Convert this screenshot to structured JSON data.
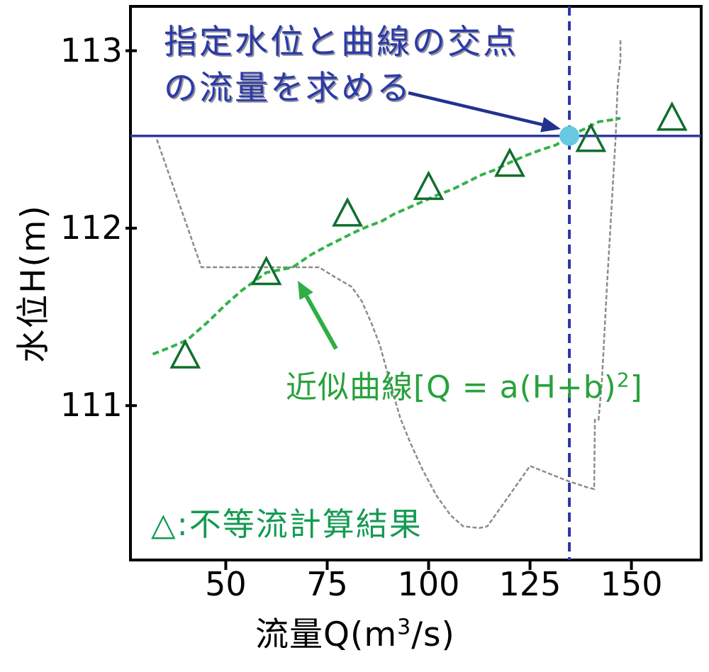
{
  "figure": {
    "y_axis": {
      "title": "水位H(m)",
      "ticks": [
        113,
        112,
        111
      ]
    },
    "x_axis": {
      "title_prefix": "流量Q(m",
      "title_sup": "3",
      "title_suffix": "/s)",
      "ticks": [
        50,
        75,
        100,
        125,
        150
      ]
    },
    "annotation": {
      "line1": "指定水位と曲線の交点",
      "line2": "の流量を求める"
    },
    "curve_label": {
      "prefix": "近似曲線[Q = a(H+b)",
      "sup": "2",
      "suffix": "]"
    },
    "legend": {
      "marker": "△",
      "separator": ":",
      "label": "不等流計算結果"
    }
  },
  "colors": {
    "frame": "#000000",
    "tick_text": "#000000",
    "specified_level_line": "#3138a0",
    "dashed_vertical": "#2b35a8",
    "fit_curve": "#33b24a",
    "triangle": "#116e2e",
    "gray_line": "#8c8c8c",
    "intersection_dot": "#67c9e2",
    "annotation_text": "#2b3aa8",
    "blue_arrow": "#24318f",
    "green_arrow": "#2fae44"
  },
  "chart_data": {
    "type": "scatter",
    "title": "",
    "xlabel": "流量Q(m3/s)",
    "ylabel": "水位H(m)",
    "xlim": [
      26.5,
      167.2
    ],
    "ylim": [
      110.13,
      113.25
    ],
    "x_ticks": [
      50,
      75,
      100,
      125,
      150
    ],
    "y_ticks": [
      111,
      112,
      113
    ],
    "grid": false,
    "legend_position": "bottom-left-inside",
    "specified_water_level": 112.52,
    "intersection": {
      "Q": 134.7,
      "H": 112.52
    },
    "series": [
      {
        "name": "不等流計算結果",
        "type": "scatter-triangle",
        "points": [
          [
            40,
            111.28
          ],
          [
            60,
            111.75
          ],
          [
            80,
            112.08
          ],
          [
            100,
            112.23
          ],
          [
            120,
            112.36
          ],
          [
            140,
            112.5
          ],
          [
            160,
            112.62
          ]
        ]
      },
      {
        "name": "近似曲線 Q = a(H+b)^2",
        "type": "dashed-line",
        "points": [
          [
            32,
            111.29
          ],
          [
            36.5,
            111.33
          ],
          [
            40.5,
            111.37
          ],
          [
            45.5,
            111.47
          ],
          [
            50,
            111.57
          ],
          [
            54,
            111.65
          ],
          [
            60,
            111.75
          ],
          [
            66.5,
            111.78
          ],
          [
            71,
            111.85
          ],
          [
            75,
            111.9
          ],
          [
            78.5,
            111.94
          ],
          [
            82,
            111.98
          ],
          [
            85,
            112.01
          ],
          [
            88.5,
            112.04
          ],
          [
            91.5,
            112.08
          ],
          [
            94.5,
            112.11
          ],
          [
            98.5,
            112.15
          ],
          [
            102.5,
            112.19
          ],
          [
            106,
            112.22
          ],
          [
            109.5,
            112.26
          ],
          [
            113,
            112.3
          ],
          [
            116.5,
            112.33
          ],
          [
            120,
            112.37
          ],
          [
            124,
            112.41
          ],
          [
            127.5,
            112.44
          ],
          [
            131.5,
            112.47
          ],
          [
            134.7,
            112.52
          ],
          [
            138.5,
            112.56
          ],
          [
            142,
            112.6
          ],
          [
            145,
            112.61
          ],
          [
            147.3,
            112.62
          ]
        ]
      },
      {
        "name": "unlabeled-gray-line",
        "type": "line",
        "points": [
          [
            33,
            112.5
          ],
          [
            44,
            111.78
          ],
          [
            73,
            111.78
          ],
          [
            76.5,
            111.73
          ],
          [
            81,
            111.67
          ],
          [
            83.5,
            111.59
          ],
          [
            86,
            111.46
          ],
          [
            88,
            111.34
          ],
          [
            90.5,
            111.13
          ],
          [
            93,
            110.93
          ],
          [
            95.5,
            110.79
          ],
          [
            98.5,
            110.64
          ],
          [
            102,
            110.49
          ],
          [
            105.5,
            110.38
          ],
          [
            108.5,
            110.32
          ],
          [
            112.5,
            110.31
          ],
          [
            114.5,
            110.32
          ],
          [
            125,
            110.66
          ],
          [
            133.8,
            110.58
          ],
          [
            139,
            110.54
          ],
          [
            140.8,
            110.53
          ],
          [
            141,
            110.92
          ],
          [
            141.9,
            110.92
          ],
          [
            142.7,
            111.13
          ],
          [
            144,
            111.69
          ],
          [
            144.7,
            111.96
          ],
          [
            145.4,
            112.24
          ],
          [
            146.1,
            112.51
          ],
          [
            146.6,
            112.8
          ],
          [
            147.3,
            112.95
          ],
          [
            147.3,
            113.07
          ]
        ]
      }
    ]
  }
}
